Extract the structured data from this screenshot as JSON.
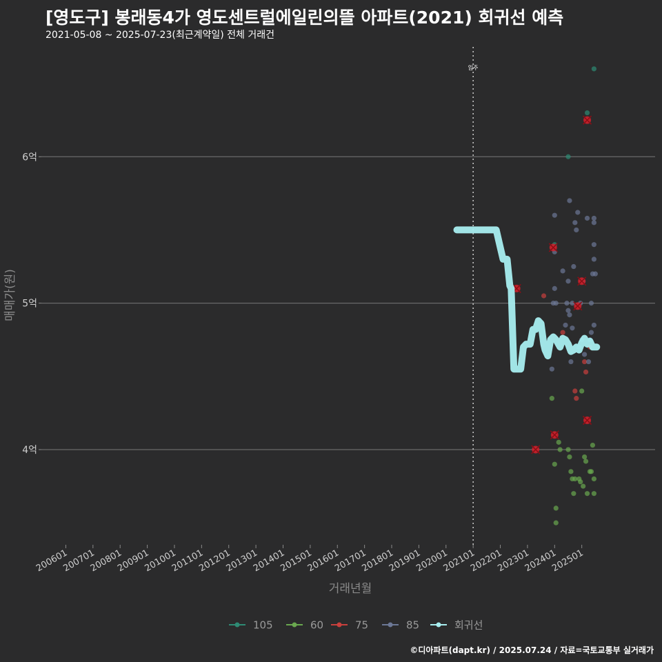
{
  "chart_data": {
    "type": "scatter",
    "title": "[영도구] 봉래동4가 영도센트럴에일린의뜰 아파트(2021) 회귀선 예측",
    "subtitle": "2021-05-08 ~ 2025-07-23(최근계약일) 전체 거래건",
    "xlabel": "거래년월",
    "ylabel": "매매가(원)",
    "x_ticks": [
      "200601",
      "200701",
      "200801",
      "200901",
      "201001",
      "201101",
      "201201",
      "201301",
      "201401",
      "201501",
      "201601",
      "201701",
      "201801",
      "201901",
      "202001",
      "202101",
      "202201",
      "202301",
      "202401",
      "202501"
    ],
    "y_ticks": [
      {
        "value": 4,
        "label": "4억"
      },
      {
        "value": 5,
        "label": "5억"
      },
      {
        "value": 6,
        "label": "6억"
      }
    ],
    "xlim": [
      2005.1,
      2027.7
    ],
    "ylim": [
      3.35,
      6.75
    ],
    "annotation": {
      "x": 2021.0,
      "label": "입주"
    },
    "legend_position": "bottom",
    "grid": true,
    "series": [
      {
        "name": "105",
        "color": "#2e8b74",
        "points": [
          [
            2024.0,
            5.4
          ],
          [
            2024.5,
            6.0
          ],
          [
            2025.2,
            6.3
          ],
          [
            2025.45,
            6.6
          ]
        ]
      },
      {
        "name": "60",
        "color": "#6aa84f",
        "points": [
          [
            2023.9,
            4.35
          ],
          [
            2024.0,
            3.9
          ],
          [
            2024.05,
            3.6
          ],
          [
            2024.05,
            3.5
          ],
          [
            2024.15,
            4.05
          ],
          [
            2024.2,
            4.0
          ],
          [
            2024.5,
            4.0
          ],
          [
            2024.55,
            3.95
          ],
          [
            2024.6,
            3.85
          ],
          [
            2024.65,
            3.8
          ],
          [
            2024.7,
            3.7
          ],
          [
            2024.75,
            3.8
          ],
          [
            2024.9,
            3.8
          ],
          [
            2024.95,
            3.78
          ],
          [
            2025.0,
            4.4
          ],
          [
            2025.05,
            3.75
          ],
          [
            2025.1,
            3.95
          ],
          [
            2025.15,
            3.92
          ],
          [
            2025.2,
            3.7
          ],
          [
            2025.3,
            3.85
          ],
          [
            2025.35,
            3.85
          ],
          [
            2025.4,
            4.03
          ],
          [
            2025.45,
            3.8
          ],
          [
            2025.45,
            3.7
          ]
        ]
      },
      {
        "name": "75",
        "color": "#c9403d",
        "points": [
          [
            2022.6,
            5.1
          ],
          [
            2023.3,
            4.0
          ],
          [
            2023.6,
            5.05
          ],
          [
            2023.95,
            5.38
          ],
          [
            2024.0,
            4.1
          ],
          [
            2024.3,
            4.8
          ],
          [
            2024.75,
            4.4
          ],
          [
            2024.8,
            4.35
          ],
          [
            2024.85,
            4.98
          ],
          [
            2025.0,
            5.15
          ],
          [
            2025.1,
            4.6
          ],
          [
            2025.15,
            4.53
          ],
          [
            2025.2,
            6.25
          ],
          [
            2025.2,
            4.2
          ],
          [
            2025.3,
            4.7
          ]
        ]
      },
      {
        "name": "85",
        "color": "#6c7896",
        "points": [
          [
            2023.9,
            4.55
          ],
          [
            2023.95,
            5.0
          ],
          [
            2024.0,
            5.6
          ],
          [
            2024.0,
            5.35
          ],
          [
            2024.0,
            5.1
          ],
          [
            2024.05,
            5.0
          ],
          [
            2024.3,
            5.22
          ],
          [
            2024.4,
            4.85
          ],
          [
            2024.45,
            5.0
          ],
          [
            2024.5,
            4.95
          ],
          [
            2024.5,
            5.15
          ],
          [
            2024.55,
            5.7
          ],
          [
            2024.55,
            4.92
          ],
          [
            2024.6,
            4.6
          ],
          [
            2024.65,
            5.0
          ],
          [
            2024.65,
            4.83
          ],
          [
            2024.7,
            5.25
          ],
          [
            2024.75,
            5.55
          ],
          [
            2024.8,
            5.5
          ],
          [
            2024.85,
            5.62
          ],
          [
            2024.9,
            4.7
          ],
          [
            2024.95,
            5.0
          ],
          [
            2025.0,
            4.75
          ],
          [
            2025.05,
            5.15
          ],
          [
            2025.1,
            4.65
          ],
          [
            2025.2,
            5.58
          ],
          [
            2025.25,
            4.6
          ],
          [
            2025.3,
            4.75
          ],
          [
            2025.35,
            5.0
          ],
          [
            2025.35,
            4.8
          ],
          [
            2025.4,
            5.2
          ],
          [
            2025.45,
            5.58
          ],
          [
            2025.45,
            5.55
          ],
          [
            2025.45,
            5.4
          ],
          [
            2025.45,
            5.3
          ],
          [
            2025.45,
            4.85
          ],
          [
            2025.5,
            5.2
          ]
        ]
      }
    ],
    "highlighted": [
      [
        2022.6,
        5.1
      ],
      [
        2023.3,
        4.0
      ],
      [
        2023.95,
        5.38
      ],
      [
        2024.0,
        4.1
      ],
      [
        2024.85,
        4.98
      ],
      [
        2025.0,
        5.15
      ],
      [
        2025.2,
        6.25
      ],
      [
        2025.2,
        4.2
      ]
    ],
    "regression": {
      "name": "회귀선",
      "color": "#a8eef0",
      "points": [
        [
          2020.4,
          5.5
        ],
        [
          2021.85,
          5.5
        ],
        [
          2022.0,
          5.38
        ],
        [
          2022.1,
          5.3
        ],
        [
          2022.25,
          5.3
        ],
        [
          2022.35,
          5.12
        ],
        [
          2022.4,
          5.1
        ],
        [
          2022.5,
          4.55
        ],
        [
          2022.6,
          4.55
        ],
        [
          2022.75,
          4.55
        ],
        [
          2022.85,
          4.7
        ],
        [
          2022.95,
          4.72
        ],
        [
          2023.1,
          4.72
        ],
        [
          2023.2,
          4.82
        ],
        [
          2023.3,
          4.82
        ],
        [
          2023.4,
          4.88
        ],
        [
          2023.5,
          4.86
        ],
        [
          2023.6,
          4.72
        ],
        [
          2023.65,
          4.68
        ],
        [
          2023.75,
          4.64
        ],
        [
          2023.85,
          4.75
        ],
        [
          2023.95,
          4.77
        ],
        [
          2024.05,
          4.75
        ],
        [
          2024.2,
          4.7
        ],
        [
          2024.3,
          4.76
        ],
        [
          2024.4,
          4.75
        ],
        [
          2024.5,
          4.72
        ],
        [
          2024.6,
          4.67
        ],
        [
          2024.7,
          4.68
        ],
        [
          2024.8,
          4.7
        ],
        [
          2024.9,
          4.68
        ],
        [
          2025.0,
          4.73
        ],
        [
          2025.1,
          4.76
        ],
        [
          2025.2,
          4.72
        ],
        [
          2025.3,
          4.74
        ],
        [
          2025.4,
          4.7
        ],
        [
          2025.55,
          4.7
        ]
      ]
    }
  },
  "credit": "©디아파트(dapt.kr) / 2025.07.24 / 자료=국토교통부 실거래가"
}
